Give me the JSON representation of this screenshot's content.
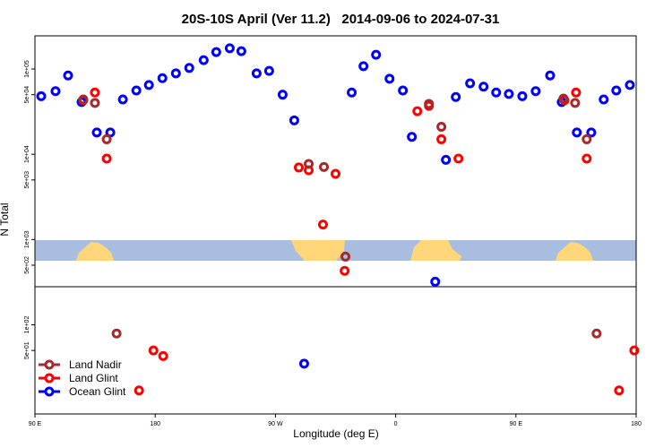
{
  "chart_data": {
    "type": "scatter",
    "title": "20S-10S April (Ver 11.2)   2014-09-06 to 2024-07-31",
    "xlabel": "Longitude (deg E)",
    "ylabel": "N Total",
    "xlim": [
      90,
      540
    ],
    "xticks": [
      {
        "value": 90,
        "label": "90 E"
      },
      {
        "value": 180,
        "label": "180"
      },
      {
        "value": 270,
        "label": "90 W"
      },
      {
        "value": 360,
        "label": "0"
      },
      {
        "value": 450,
        "label": "90 E"
      },
      {
        "value": 540,
        "label": "180"
      }
    ],
    "ylim": [
      9,
      245000
    ],
    "ylog": true,
    "yticks": [
      {
        "value": 100000,
        "label": "1e+05"
      },
      {
        "value": 50000,
        "label": "5e+04"
      },
      {
        "value": 10000,
        "label": "1e+04"
      },
      {
        "value": 5000,
        "label": "5e+03"
      },
      {
        "value": 1000,
        "label": "1e+03"
      },
      {
        "value": 500,
        "label": "5e+02"
      },
      {
        "value": 100,
        "label": "1e+02"
      },
      {
        "value": 50,
        "label": "5e+01"
      }
    ],
    "legend": "bottom-left",
    "series": [
      {
        "name": "Land Nadir",
        "color": "#a52a2a",
        "x": [
          126.2,
          134.9,
          143.7,
          151.1,
          294.9,
          306.3,
          322.4,
          384.9,
          394.2,
          485.6,
          494.3,
          503.0,
          510.4
        ],
        "values": [
          44000,
          40000,
          15000,
          79,
          7700,
          7100,
          630,
          39000,
          21000,
          45000,
          40000,
          15000,
          79
        ]
      },
      {
        "name": "Land Glint",
        "color": "#ff0000",
        "x": [
          126.2,
          134.9,
          143.7,
          167.9,
          178.7,
          186.0,
          287.5,
          294.9,
          305.6,
          315.0,
          321.8,
          376.2,
          384.9,
          394.2,
          407.0,
          486.3,
          495.0,
          503.0,
          527.2,
          538.6
        ],
        "values": [
          43000,
          53000,
          8900,
          17,
          50,
          43,
          7000,
          6500,
          1500,
          5900,
          430,
          32000,
          37000,
          15000,
          8900,
          43000,
          53000,
          8900,
          17,
          50
        ]
      },
      {
        "name": "Ocean Glint",
        "color": "#0000ff",
        "x": [
          94.7,
          105.4,
          114.8,
          124.9,
          136.3,
          146.4,
          155.8,
          165.9,
          175.3,
          185.4,
          195.5,
          205.5,
          216.3,
          225.7,
          235.8,
          244.5,
          255.9,
          265.3,
          275.4,
          284.1,
          291.5,
          327.1,
          335.9,
          345.3,
          355.4,
          365.4,
          372.1,
          389.6,
          397.6,
          405.0,
          415.7,
          425.8,
          435.2,
          444.7,
          454.8,
          464.8,
          475.6,
          484.3,
          495.6,
          506.4,
          515.7,
          525.1,
          535.3
        ],
        "values": [
          48000,
          55000,
          84000,
          41000,
          18000,
          18000,
          44000,
          56000,
          65000,
          78000,
          89000,
          103000,
          127000,
          158000,
          175000,
          162000,
          89000,
          95000,
          50000,
          25000,
          35,
          53000,
          108000,
          147000,
          77000,
          56000,
          16000,
          320,
          8600,
          47000,
          68000,
          62000,
          53000,
          51000,
          48000,
          55000,
          84000,
          41000,
          18000,
          18000,
          44000,
          56000,
          65000
        ]
      }
    ]
  }
}
